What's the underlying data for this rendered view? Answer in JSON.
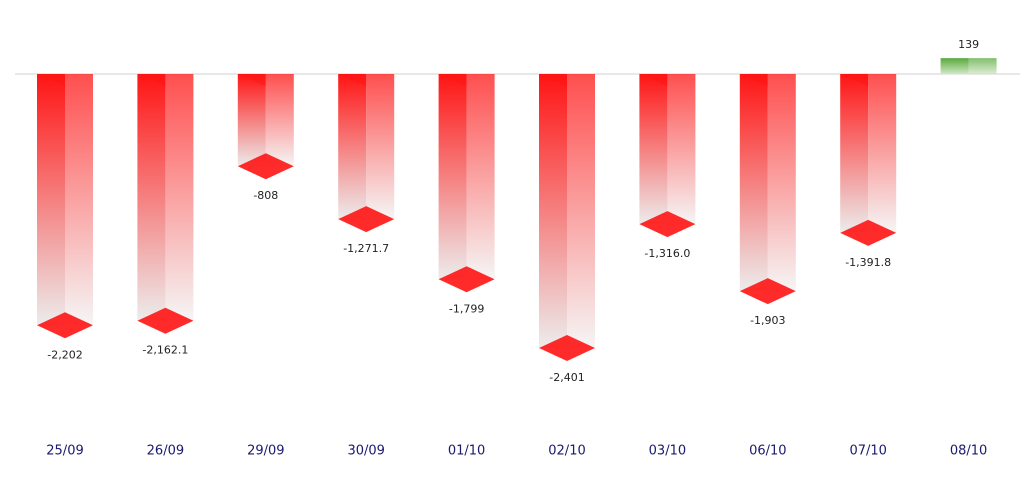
{
  "chart_data": {
    "type": "bar3d",
    "categories": [
      "25/09",
      "26/09",
      "29/09",
      "30/09",
      "01/10",
      "02/10",
      "03/10",
      "06/10",
      "07/10",
      "08/10"
    ],
    "values": [
      -2202,
      -2162.1,
      -808,
      -1271.7,
      -1799,
      -2401,
      -1316.0,
      -1903,
      -1391.8,
      139
    ],
    "value_labels": [
      "-2,202",
      "-2,162.1",
      "-808",
      "-1,271.7",
      "-1,799",
      "-2,401",
      "-1,316.0",
      "-1,903",
      "-1,391.8",
      "139"
    ],
    "color": "#ff1414",
    "positive_color": "#5aa83c"
  }
}
